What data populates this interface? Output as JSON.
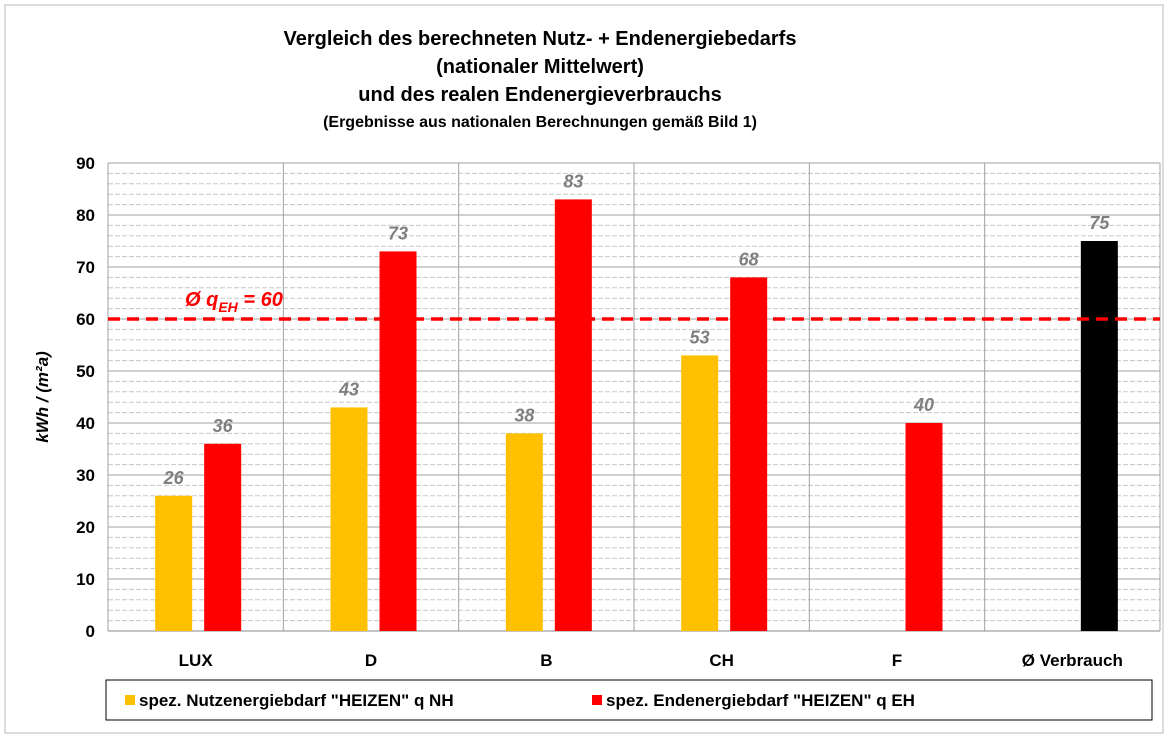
{
  "chart_data": {
    "type": "bar",
    "title": [
      "Vergleich des berechneten Nutz- + Endenergiebedarfs",
      "(nationaler Mittelwert)",
      "und des realen Endenergieverbrauchs",
      "(Ergebnisse aus nationalen Berechnungen gemäß Bild 1)"
    ],
    "y_label": "kWh / (m²a)",
    "categories": [
      "LUX",
      "D",
      "B",
      "CH",
      "F",
      "Ø Verbrauch"
    ],
    "series": [
      {
        "name": "spez. Nutzenergiebdarf \"HEIZEN\" q NH",
        "color": "#ffc000",
        "values": [
          26,
          43,
          38,
          53,
          null,
          null
        ]
      },
      {
        "name": "spez. Endenergiebdarf \"HEIZEN\" q EH",
        "color": "#ff0000",
        "point_colors": [
          "#ff0000",
          "#ff0000",
          "#ff0000",
          "#ff0000",
          "#ff0000",
          "#000000"
        ],
        "values": [
          36,
          73,
          83,
          68,
          40,
          75
        ]
      }
    ],
    "ylim": [
      0,
      90
    ],
    "yticks": [
      0,
      10,
      20,
      30,
      40,
      50,
      60,
      70,
      80,
      90
    ],
    "grid": true,
    "reference_line": {
      "value": 60,
      "color": "#ff0000",
      "label_prefix": "Ø q",
      "label_sub": "EH",
      "label_suffix": " = 60"
    },
    "legend": "bottom"
  }
}
